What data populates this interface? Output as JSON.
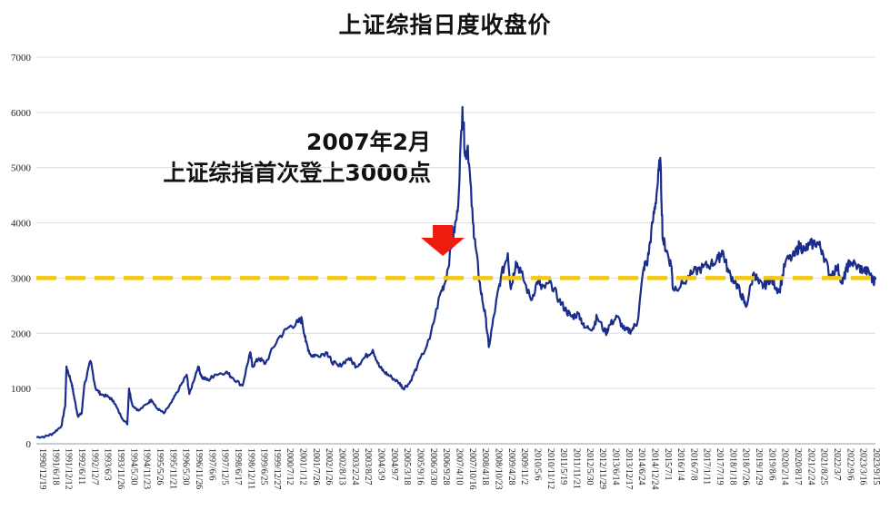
{
  "chart_data": {
    "type": "line",
    "title": "上证综指日度收盘价",
    "xlabel": "",
    "ylabel": "",
    "ylim": [
      0,
      7000
    ],
    "yticks": [
      0,
      1000,
      2000,
      3000,
      4000,
      5000,
      6000,
      7000
    ],
    "grid": true,
    "reference_line": {
      "value": 3000,
      "color": "#f2c811",
      "style": "dashed"
    },
    "annotation": {
      "lines": [
        "2007年2月",
        "上证综指首次登上3000点"
      ],
      "arrow_x": 2007.12,
      "arrow_color": "#ee1c0e"
    },
    "line_color": "#1a2d8c",
    "x_tick_labels": [
      "1990/12/19",
      "1991/6/18",
      "1991/12/12",
      "1992/6/11",
      "1992/12/7",
      "1993/6/3",
      "1993/11/26",
      "1994/5/30",
      "1994/11/23",
      "1995/5/26",
      "1995/11/21",
      "1996/5/30",
      "1996/11/26",
      "1997/6/6",
      "1997/12/5",
      "1998/6/17",
      "1998/12/11",
      "1999/6/25",
      "1999/12/27",
      "2000/7/12",
      "2001/1/12",
      "2001/7/26",
      "2002/1/26",
      "2002/8/13",
      "2003/2/24",
      "2003/8/27",
      "2004/3/9",
      "2004/9/7",
      "2005/3/18",
      "2005/9/16",
      "2006/3/30",
      "2006/9/28",
      "2007/4/10",
      "2007/10/16",
      "2008/4/18",
      "2008/10/23",
      "2009/4/28",
      "2009/11/2",
      "2010/5/6",
      "2010/11/12",
      "2011/5/19",
      "2011/11/21",
      "2012/5/30",
      "2012/11/29",
      "2013/6/14",
      "2013/12/17",
      "2014/6/24",
      "2014/12/24",
      "2015/7/1",
      "2016/1/4",
      "2016/7/8",
      "2017/1/11",
      "2017/7/19",
      "2018/1/18",
      "2018/7/26",
      "2019/1/29",
      "2019/8/6",
      "2020/2/14",
      "2020/8/17",
      "2021/2/24",
      "2021/8/25",
      "2022/3/7",
      "2022/9/6",
      "2023/3/16",
      "2023/9/15"
    ],
    "x": [
      1990.96,
      1991.3,
      1991.6,
      1991.95,
      1992.1,
      1992.15,
      1992.35,
      1992.45,
      1992.6,
      1992.75,
      1992.85,
      1993.1,
      1993.3,
      1993.5,
      1993.8,
      1994.0,
      1994.3,
      1994.55,
      1994.62,
      1994.75,
      1995.0,
      1995.4,
      1995.5,
      1995.7,
      1996.0,
      1996.3,
      1996.6,
      1996.9,
      1997.0,
      1997.35,
      1997.5,
      1997.75,
      1998.0,
      1998.45,
      1998.7,
      1999.1,
      1999.4,
      1999.5,
      1999.75,
      2000.0,
      2000.5,
      2000.9,
      2001.3,
      2001.45,
      2001.6,
      2001.8,
      2002.0,
      2002.45,
      2002.6,
      2002.9,
      2003.3,
      2003.6,
      2003.9,
      2004.25,
      2004.5,
      2004.7,
      2005.0,
      2005.3,
      2005.45,
      2005.7,
      2006.0,
      2006.5,
      2006.9,
      2007.12,
      2007.4,
      2007.6,
      2007.79,
      2007.9,
      2008.0,
      2008.2,
      2008.3,
      2008.5,
      2008.7,
      2008.83,
      2009.1,
      2009.3,
      2009.58,
      2009.7,
      2009.9,
      2010.1,
      2010.5,
      2010.8,
      2010.9,
      2011.3,
      2011.6,
      2011.9,
      2012.1,
      2012.4,
      2012.6,
      2012.95,
      2013.1,
      2013.45,
      2013.6,
      2013.9,
      2014.2,
      2014.45,
      2014.7,
      2014.95,
      2015.1,
      2015.3,
      2015.45,
      2015.6,
      2015.7,
      2015.85,
      2016.05,
      2016.1,
      2016.5,
      2016.9,
      2017.3,
      2017.6,
      2017.9,
      2018.05,
      2018.3,
      2018.6,
      2018.8,
      2018.99,
      2019.3,
      2019.5,
      2019.7,
      2019.95,
      2020.1,
      2020.3,
      2020.55,
      2020.9,
      2021.1,
      2021.3,
      2021.5,
      2021.8,
      2022.0,
      2022.3,
      2022.6,
      2022.8,
      2022.95,
      2023.1,
      2023.4,
      2023.6,
      2023.85,
      2024.0,
      2024.1
    ],
    "values": [
      120,
      130,
      180,
      320,
      700,
      1400,
      1100,
      850,
      500,
      550,
      1050,
      1500,
      1000,
      900,
      850,
      780,
      500,
      350,
      1000,
      700,
      600,
      750,
      800,
      650,
      550,
      750,
      1000,
      1250,
      900,
      1400,
      1200,
      1150,
      1250,
      1300,
      1200,
      1050,
      1650,
      1400,
      1550,
      1450,
      1900,
      2100,
      2200,
      2250,
      1850,
      1600,
      1600,
      1650,
      1500,
      1400,
      1550,
      1400,
      1550,
      1700,
      1400,
      1300,
      1200,
      1100,
      1000,
      1100,
      1400,
      1900,
      2700,
      2950,
      3700,
      4200,
      6100,
      5200,
      5400,
      4000,
      3600,
      2800,
      2300,
      1750,
      2500,
      3000,
      3450,
      2800,
      3300,
      3100,
      2600,
      3000,
      2800,
      2900,
      2600,
      2400,
      2300,
      2350,
      2100,
      2100,
      2300,
      2000,
      2150,
      2300,
      2050,
      2050,
      2200,
      3200,
      3300,
      4000,
      4500,
      5178,
      3700,
      3500,
      3200,
      2800,
      2900,
      3100,
      3200,
      3250,
      3350,
      3500,
      3100,
      2900,
      2700,
      2480,
      3100,
      2900,
      2850,
      3000,
      2900,
      2750,
      3300,
      3400,
      3600,
      3500,
      3600,
      3650,
      3500,
      3050,
      3200,
      2900,
      3150,
      3300,
      3200,
      3150,
      3100,
      2950,
      2970
    ]
  }
}
